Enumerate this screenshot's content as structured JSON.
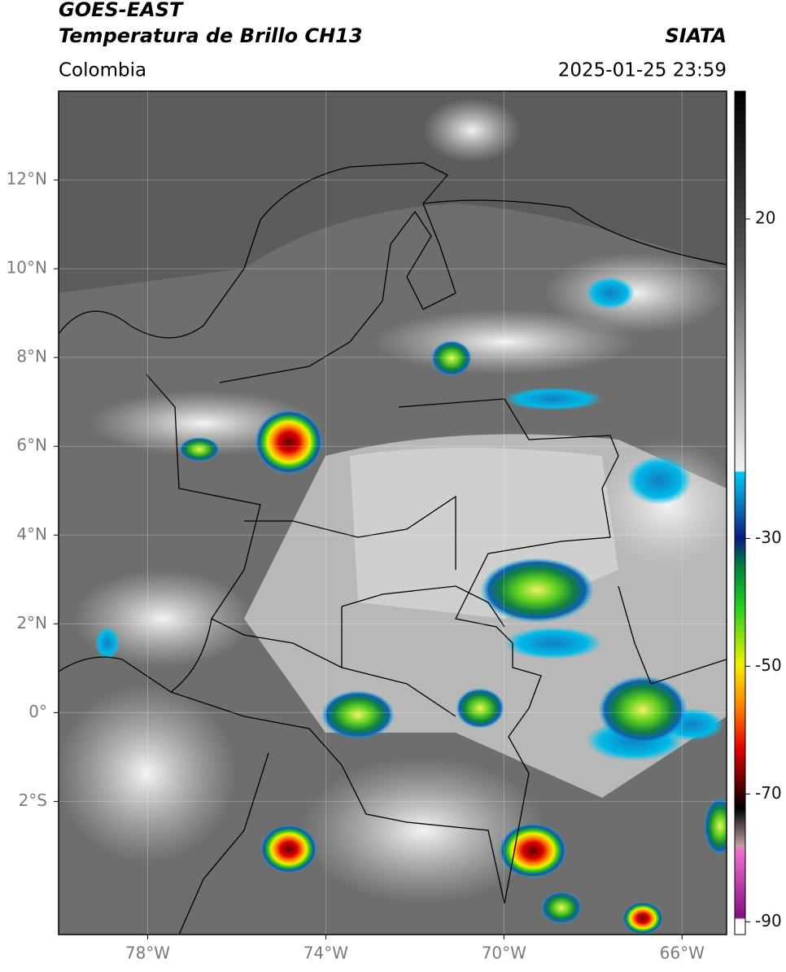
{
  "header": {
    "satellite": "GOES-EAST",
    "product": "Temperatura de Brillo CH13",
    "source": "SIATA",
    "region": "Colombia",
    "timestamp": "2025-01-25 23:59"
  },
  "map": {
    "lon_lim": [
      -80,
      -65
    ],
    "lat_lim": [
      -5,
      14
    ],
    "lon_ticks": [
      {
        "value": -78,
        "label": "78°W"
      },
      {
        "value": -74,
        "label": "74°W"
      },
      {
        "value": -70,
        "label": "70°W"
      },
      {
        "value": -66,
        "label": "66°W"
      }
    ],
    "lat_ticks": [
      {
        "value": 12,
        "label": "12°N"
      },
      {
        "value": 10,
        "label": "10°N"
      },
      {
        "value": 8,
        "label": "8°N"
      },
      {
        "value": 6,
        "label": "6°N"
      },
      {
        "value": 4,
        "label": "4°N"
      },
      {
        "value": 2,
        "label": "2°N"
      },
      {
        "value": 0,
        "label": "0°"
      },
      {
        "value": -2,
        "label": "2°S"
      }
    ],
    "grid": true
  },
  "colorbar": {
    "lim": [
      -92,
      40
    ],
    "ticks": [
      20,
      -30,
      -50,
      -70,
      -90
    ]
  }
}
